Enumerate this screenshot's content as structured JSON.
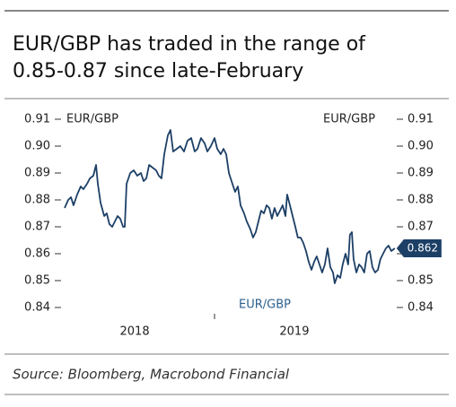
{
  "chart_data": {
    "type": "line",
    "title": [
      "EUR/GBP has traded in the range of",
      "0.85-0.87 since late-February"
    ],
    "left_label": "EUR/GBP",
    "right_label": "EUR/GBP",
    "source": "Source: Bloomberg, Macrobond Financial",
    "xlim": [
      2018.05,
      2020.13
    ],
    "xticks": [
      {
        "value": 2018.5,
        "label": "2018"
      },
      {
        "value": 2019.5,
        "label": "2019"
      }
    ],
    "ylim": [
      0.84,
      0.91
    ],
    "yticks": [
      {
        "value": 0.84,
        "label": "0.84"
      },
      {
        "value": 0.85,
        "label": "0.85"
      },
      {
        "value": 0.86,
        "label": "0.86"
      },
      {
        "value": 0.87,
        "label": "0.87"
      },
      {
        "value": 0.88,
        "label": "0.88"
      },
      {
        "value": 0.89,
        "label": "0.89"
      },
      {
        "value": 0.9,
        "label": "0.90"
      },
      {
        "value": 0.91,
        "label": "0.91"
      }
    ],
    "y2lim": [
      0.84,
      0.91
    ],
    "y2ticks": [
      {
        "value": 0.84,
        "label": "0.84"
      },
      {
        "value": 0.85,
        "label": "0.85"
      },
      {
        "value": 0.86,
        "label": "0.86"
      },
      {
        "value": 0.87,
        "label": "0.87"
      },
      {
        "value": 0.88,
        "label": "0.88"
      },
      {
        "value": 0.89,
        "label": "0.89"
      },
      {
        "value": 0.9,
        "label": "0.90"
      },
      {
        "value": 0.91,
        "label": "0.91"
      }
    ],
    "series": [
      {
        "name": "EUR/GBP",
        "color": "#1c3f66",
        "x": [
          2018.061,
          2018.084,
          2018.101,
          2018.117,
          2018.14,
          2018.162,
          2018.179,
          2018.202,
          2018.219,
          2018.241,
          2018.258,
          2018.269,
          2018.286,
          2018.309,
          2018.325,
          2018.342,
          2018.359,
          2018.376,
          2018.393,
          2018.41,
          2018.427,
          2018.438,
          2018.449,
          2018.472,
          2018.494,
          2018.516,
          2018.539,
          2018.556,
          2018.573,
          2018.59,
          2018.612,
          2018.634,
          2018.651,
          2018.668,
          2018.685,
          2018.708,
          2018.724,
          2018.741,
          2018.764,
          2018.786,
          2018.809,
          2018.831,
          2018.854,
          2018.876,
          2018.893,
          2018.915,
          2018.938,
          2018.955,
          2018.977,
          2019.0,
          2019.017,
          2019.039,
          2019.056,
          2019.073,
          2019.09,
          2019.112,
          2019.129,
          2019.146,
          2019.163,
          2019.185,
          2019.202,
          2019.225,
          2019.241,
          2019.258,
          2019.275,
          2019.292,
          2019.309,
          2019.326,
          2019.343,
          2019.359,
          2019.376,
          2019.393,
          2019.41,
          2019.427,
          2019.444,
          2019.455,
          2019.472,
          2019.489,
          2019.506,
          2019.522,
          2019.539,
          2019.556,
          2019.573,
          2019.59,
          2019.607,
          2019.624,
          2019.64,
          2019.657,
          2019.674,
          2019.691,
          2019.708,
          2019.725,
          2019.742,
          2019.753,
          2019.77,
          2019.787,
          2019.803,
          2019.82,
          2019.837,
          2019.848,
          2019.86,
          2019.871,
          2019.888,
          2019.905,
          2019.921,
          2019.938,
          2019.955,
          2019.972,
          2019.989,
          2020.006,
          2020.023,
          2020.039,
          2020.056,
          2020.073,
          2020.09,
          2020.107,
          2020.129
        ],
        "values": [
          0.877,
          0.88,
          0.881,
          0.878,
          0.882,
          0.885,
          0.884,
          0.886,
          0.888,
          0.889,
          0.893,
          0.886,
          0.879,
          0.874,
          0.875,
          0.871,
          0.87,
          0.872,
          0.874,
          0.873,
          0.87,
          0.87,
          0.886,
          0.89,
          0.891,
          0.889,
          0.89,
          0.887,
          0.888,
          0.893,
          0.892,
          0.891,
          0.889,
          0.888,
          0.897,
          0.904,
          0.906,
          0.898,
          0.899,
          0.9,
          0.898,
          0.902,
          0.903,
          0.898,
          0.899,
          0.903,
          0.901,
          0.898,
          0.9,
          0.903,
          0.899,
          0.897,
          0.899,
          0.897,
          0.89,
          0.886,
          0.883,
          0.885,
          0.878,
          0.875,
          0.872,
          0.869,
          0.866,
          0.868,
          0.872,
          0.876,
          0.875,
          0.878,
          0.877,
          0.873,
          0.877,
          0.874,
          0.876,
          0.878,
          0.874,
          0.882,
          0.878,
          0.874,
          0.87,
          0.866,
          0.866,
          0.864,
          0.861,
          0.857,
          0.854,
          0.857,
          0.859,
          0.856,
          0.853,
          0.856,
          0.862,
          0.855,
          0.853,
          0.849,
          0.852,
          0.851,
          0.856,
          0.86,
          0.856,
          0.867,
          0.868,
          0.858,
          0.853,
          0.856,
          0.855,
          0.853,
          0.86,
          0.861,
          0.855,
          0.853,
          0.854,
          0.858,
          0.86,
          0.862,
          0.863,
          0.861,
          0.862
        ]
      }
    ]
  }
}
